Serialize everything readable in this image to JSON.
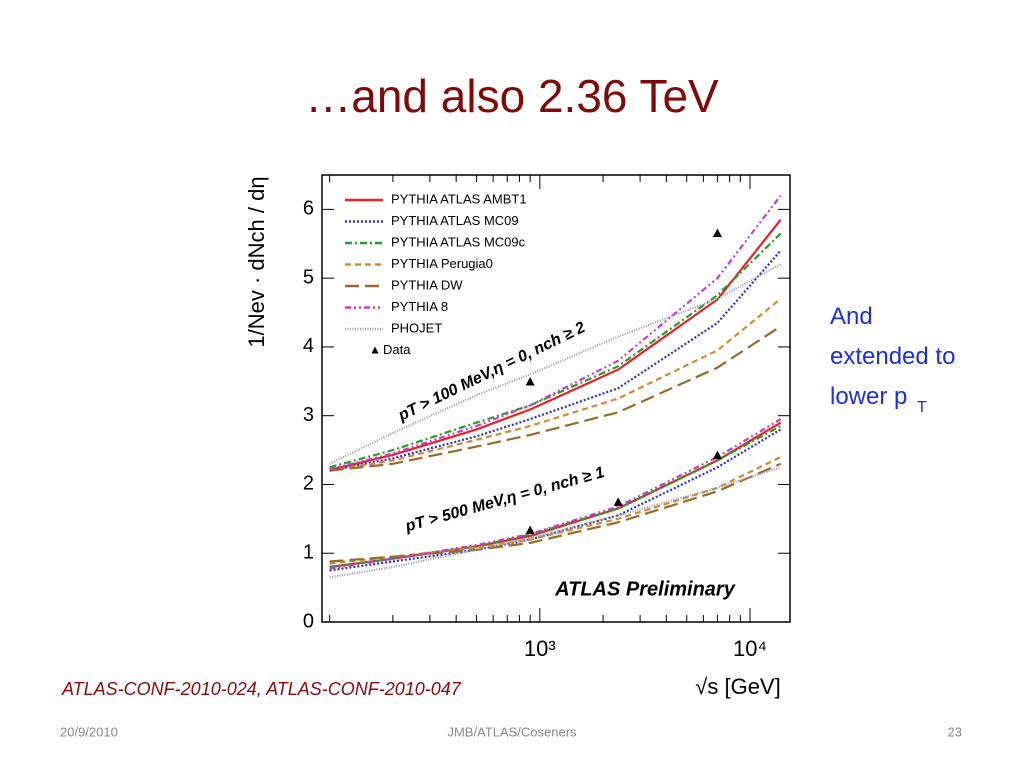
{
  "slide": {
    "title": "…and also 2.36 TeV",
    "side_note": "And extended to lower p",
    "side_note_sub": "T",
    "citation": "ATLAS-CONF-2010-024, ATLAS-CONF-2010-047",
    "footer_date": "20/9/2010",
    "footer_center": "JMB/ATLAS/Coseners",
    "footer_page": "23"
  },
  "chart_data": {
    "type": "line",
    "xscale": "log",
    "xlabel": "√s [GeV]",
    "ylabel": "1/Nev · dNch / dη",
    "xlim": [
      92,
      15500
    ],
    "ylim": [
      0,
      6.5
    ],
    "xticks": [
      {
        "value": 1000,
        "label": "10³"
      },
      {
        "value": 10000,
        "label": "10⁴"
      }
    ],
    "xminorticks": [
      100,
      200,
      300,
      400,
      500,
      600,
      700,
      800,
      900,
      2000,
      3000,
      4000,
      5000,
      6000,
      7000,
      8000,
      9000
    ],
    "yticks": [
      0,
      1,
      2,
      3,
      4,
      5,
      6
    ],
    "annotations": [
      "pT > 100 MeV,η = 0, nch ≥ 2",
      "pT > 500 MeV,η = 0, nch ≥ 1",
      "ATLAS Preliminary"
    ],
    "x": [
      100,
      200,
      500,
      900,
      2360,
      7000,
      14000
    ],
    "series": [
      {
        "name": "PYTHIA ATLAS AMBT1",
        "color": "#e8202a",
        "dash": "solid",
        "values": [
          [
            2.21,
            2.43,
            2.8,
            3.09,
            3.67,
            4.69,
            5.85
          ],
          [
            0.8,
            0.92,
            1.1,
            1.25,
            1.65,
            2.35,
            2.9
          ]
        ]
      },
      {
        "name": "PYTHIA ATLAS MC09",
        "color": "#2b2fc4",
        "dash": "dotted",
        "values": [
          [
            2.2,
            2.38,
            2.7,
            2.95,
            3.4,
            4.35,
            5.4
          ],
          [
            0.75,
            0.88,
            1.05,
            1.2,
            1.55,
            2.25,
            2.8
          ]
        ]
      },
      {
        "name": "PYTHIA ATLAS MC09c",
        "color": "#2a9a2a",
        "dash": "dashdot",
        "values": [
          [
            2.25,
            2.5,
            2.9,
            3.15,
            3.72,
            4.75,
            5.65
          ],
          [
            0.8,
            0.92,
            1.1,
            1.27,
            1.65,
            2.35,
            2.85
          ]
        ]
      },
      {
        "name": "PYTHIA Perugia0",
        "color": "#d08a3c",
        "dash": "dashed",
        "values": [
          [
            2.2,
            2.35,
            2.65,
            2.85,
            3.25,
            3.95,
            4.7
          ],
          [
            0.85,
            0.95,
            1.08,
            1.2,
            1.5,
            1.95,
            2.4
          ]
        ]
      },
      {
        "name": "PYTHIA DW",
        "color": "#9a6a2a",
        "dash": "longdash",
        "values": [
          [
            2.2,
            2.3,
            2.55,
            2.72,
            3.05,
            3.7,
            4.3
          ],
          [
            0.88,
            0.95,
            1.05,
            1.15,
            1.45,
            1.9,
            2.3
          ]
        ]
      },
      {
        "name": "PYTHIA 8",
        "color": "#c040c8",
        "dash": "dashdotdot",
        "values": [
          [
            2.22,
            2.45,
            2.85,
            3.15,
            3.8,
            5.0,
            6.2
          ],
          [
            0.78,
            0.92,
            1.12,
            1.28,
            1.68,
            2.4,
            2.95
          ]
        ]
      },
      {
        "name": "PHOJET",
        "color": "#9a9aaa",
        "dash": "densedot",
        "values": [
          [
            2.3,
            2.75,
            3.3,
            3.6,
            4.15,
            4.7,
            5.2
          ],
          [
            0.65,
            0.8,
            1.05,
            1.22,
            1.55,
            1.95,
            2.25
          ]
        ]
      }
    ],
    "data": {
      "name": "Data",
      "color": "#000000",
      "x": [
        900,
        7000,
        900,
        2360,
        7000
      ],
      "values": [
        3.49,
        5.65,
        1.33,
        1.74,
        2.42
      ]
    }
  }
}
